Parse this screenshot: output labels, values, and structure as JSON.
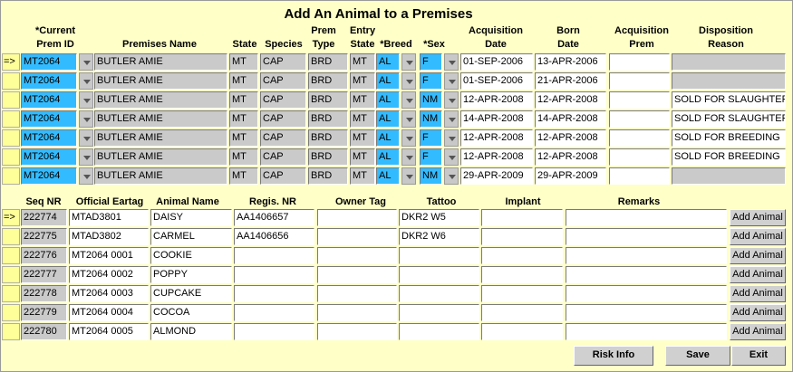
{
  "title": "Add An Animal to a Premises",
  "premises": {
    "marker": "=>",
    "headers": [
      [
        "*Current",
        "Prem ID"
      ],
      [
        "Premises Name"
      ],
      [
        "State"
      ],
      [
        "Species"
      ],
      [
        "Prem",
        "Type"
      ],
      [
        "Entry",
        "State"
      ],
      [
        "*Breed"
      ],
      [
        "*Sex"
      ],
      [
        "Acquisition",
        "Date"
      ],
      [
        "Born",
        "Date"
      ],
      [
        "Acquisition",
        "Prem"
      ],
      [
        "Disposition",
        "Reason"
      ]
    ],
    "rows": [
      [
        "MT2064",
        "BUTLER AMIE",
        "MT",
        "CAP",
        "BRD",
        "MT",
        "AL",
        "F",
        "01-SEP-2006",
        "13-APR-2006",
        null,
        null
      ],
      [
        "MT2064",
        "BUTLER AMIE",
        "MT",
        "CAP",
        "BRD",
        "MT",
        "AL",
        "F",
        "01-SEP-2006",
        "21-APR-2006",
        null,
        null
      ],
      [
        "MT2064",
        "BUTLER AMIE",
        "MT",
        "CAP",
        "BRD",
        "MT",
        "AL",
        "NM",
        "12-APR-2008",
        "12-APR-2008",
        null,
        "SOLD FOR SLAUGHTER"
      ],
      [
        "MT2064",
        "BUTLER AMIE",
        "MT",
        "CAP",
        "BRD",
        "MT",
        "AL",
        "NM",
        "14-APR-2008",
        "14-APR-2008",
        null,
        "SOLD FOR SLAUGHTER"
      ],
      [
        "MT2064",
        "BUTLER AMIE",
        "MT",
        "CAP",
        "BRD",
        "MT",
        "AL",
        "F",
        "12-APR-2008",
        "12-APR-2008",
        null,
        "SOLD FOR BREEDING"
      ],
      [
        "MT2064",
        "BUTLER AMIE",
        "MT",
        "CAP",
        "BRD",
        "MT",
        "AL",
        "F",
        "12-APR-2008",
        "12-APR-2008",
        null,
        "SOLD FOR BREEDING"
      ],
      [
        "MT2064",
        "BUTLER AMIE",
        "MT",
        "CAP",
        "BRD",
        "MT",
        "AL",
        "NM",
        "29-APR-2009",
        "29-APR-2009",
        null,
        null
      ]
    ]
  },
  "animals": {
    "marker": "=>",
    "headers": [
      "Seq NR",
      "Official Eartag",
      "Animal Name",
      "Regis. NR",
      "Owner Tag",
      "Tattoo",
      "Implant",
      "Remarks"
    ],
    "rows": [
      {
        "cells": [
          "222774",
          "MTAD3801",
          "DAISY",
          "AA1406657",
          null,
          "DKR2 W5",
          null,
          null
        ],
        "action": "Add Animal"
      },
      {
        "cells": [
          "222775",
          "MTAD3802",
          "CARMEL",
          "AA1406656",
          null,
          "DKR2 W6",
          null,
          null
        ],
        "action": "Add Animal"
      },
      {
        "cells": [
          "222776",
          "MT2064 0001",
          "COOKIE",
          null,
          null,
          null,
          null,
          null
        ],
        "action": "Add Animal"
      },
      {
        "cells": [
          "222777",
          "MT2064 0002",
          "POPPY",
          null,
          null,
          null,
          null,
          null
        ],
        "action": "Add Animal"
      },
      {
        "cells": [
          "222778",
          "MT2064 0003",
          "CUPCAKE",
          null,
          null,
          null,
          null,
          null
        ],
        "action": "Add Animal"
      },
      {
        "cells": [
          "222779",
          "MT2064 0004",
          "COCOA",
          null,
          null,
          null,
          null,
          null
        ],
        "action": "Add Animal"
      },
      {
        "cells": [
          "222780",
          "MT2064 0005",
          "ALMOND",
          null,
          null,
          null,
          null,
          null
        ],
        "action": "Add Animal"
      }
    ]
  },
  "buttons": [
    "Risk Info",
    "Save",
    "Exit"
  ]
}
